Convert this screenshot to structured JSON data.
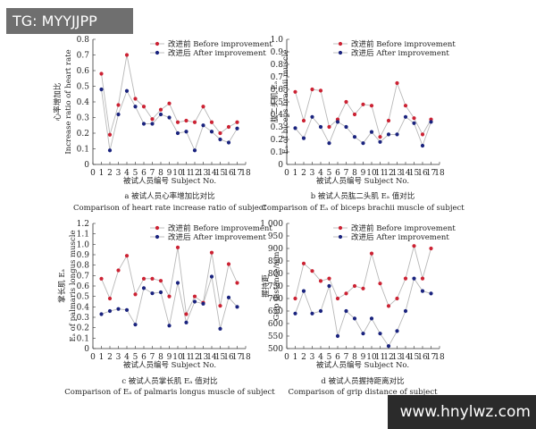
{
  "banner": {
    "text": "TG: MYYJJPP"
  },
  "watermark": {
    "text": "www.hnylwz.com"
  },
  "colors": {
    "before": "#cc2233",
    "after": "#1a237e",
    "line": "#b8b8b8",
    "axis": "#333333"
  },
  "chart_data": [
    {
      "id": "a",
      "type": "line",
      "legend": [
        "改进前 Before improvement",
        "改进后 After improvement"
      ],
      "ylabel_cn": "心率增加比",
      "ylabel_en": "Increase ratio of heart rate",
      "xlabel": "被试人员编号 Subject No.",
      "caption_cn": "a 被试人员心率增加比对比",
      "caption_en": "Comparison of heart rate increase ratio of subject",
      "xlim": [
        0,
        18
      ],
      "ylim": [
        0,
        0.8
      ],
      "xticks": [
        "0",
        "1",
        "2",
        "3",
        "4",
        "5",
        "6",
        "7",
        "8",
        "9",
        "10",
        "11",
        "12",
        "13",
        "14",
        "15",
        "16",
        "17",
        "18"
      ],
      "yticks": [
        "0",
        "0.1",
        "0.2",
        "0.3",
        "0.4",
        "0.5",
        "0.6",
        "0.7",
        "0.8"
      ],
      "x": [
        1,
        2,
        3,
        4,
        5,
        6,
        7,
        8,
        9,
        10,
        11,
        12,
        13,
        14,
        15,
        16,
        17
      ],
      "series": [
        {
          "name": "改进前 Before improvement",
          "values": [
            0.58,
            0.19,
            0.38,
            0.7,
            0.42,
            0.37,
            0.29,
            0.35,
            0.39,
            0.27,
            0.28,
            0.27,
            0.37,
            0.27,
            0.2,
            0.24,
            0.27
          ]
        },
        {
          "name": "改进后 After improvement",
          "values": [
            0.48,
            0.09,
            0.32,
            0.47,
            0.37,
            0.26,
            0.26,
            0.32,
            0.3,
            0.2,
            0.21,
            0.09,
            0.25,
            0.21,
            0.16,
            0.14,
            0.23
          ]
        }
      ]
    },
    {
      "id": "b",
      "type": "line",
      "legend": [
        "改进前 Before improvement",
        "改进后 After improvement"
      ],
      "ylabel_cn": "肱二头肌 Eₐ",
      "ylabel_en": "Eₐ of biceps brachii muscle",
      "xlabel": "被试人员编号 Subject No.",
      "caption_cn": "b 被试人员肱二头肌 Eₐ 值对比",
      "caption_en": "Comparison of Eₐ of biceps brachii muscle of subject",
      "xlim": [
        0,
        18
      ],
      "ylim": [
        0,
        1.0
      ],
      "xticks": [
        "0",
        "1",
        "2",
        "3",
        "4",
        "5",
        "6",
        "7",
        "8",
        "9",
        "10",
        "11",
        "12",
        "13",
        "14",
        "15",
        "16",
        "17",
        "18"
      ],
      "yticks": [
        "0",
        "0.1",
        "0.2",
        "0.3",
        "0.4",
        "0.5",
        "0.6",
        "0.7",
        "0.8",
        "0.9",
        "1.0"
      ],
      "x": [
        1,
        2,
        3,
        4,
        5,
        6,
        7,
        8,
        9,
        10,
        11,
        12,
        13,
        14,
        15,
        16,
        17
      ],
      "series": [
        {
          "name": "改进前 Before improvement",
          "values": [
            0.58,
            0.35,
            0.6,
            0.59,
            0.3,
            0.36,
            0.5,
            0.4,
            0.48,
            0.47,
            0.22,
            0.35,
            0.65,
            0.47,
            0.37,
            0.24,
            0.36
          ]
        },
        {
          "name": "改进后 After improvement",
          "values": [
            0.29,
            0.21,
            0.38,
            0.3,
            0.17,
            0.34,
            0.3,
            0.22,
            0.17,
            0.26,
            0.18,
            0.24,
            0.24,
            0.38,
            0.33,
            0.15,
            0.34
          ]
        }
      ]
    },
    {
      "id": "c",
      "type": "line",
      "legend": [
        "改进前 Before improvement",
        "改进后 After improvement"
      ],
      "ylabel_cn": "掌长肌 Eₐ",
      "ylabel_en": "Eₐ of palmaris longus muscle",
      "xlabel": "被试人员编号 Subject No.",
      "caption_cn": "c 被试人员掌长肌 Eₐ 值对比",
      "caption_en": "Comparison of Eₐ of palmaris longus muscle of subject",
      "xlim": [
        0,
        18
      ],
      "ylim": [
        0,
        1.2
      ],
      "xticks": [
        "0",
        "1",
        "2",
        "3",
        "4",
        "5",
        "6",
        "7",
        "8",
        "9",
        "10",
        "11",
        "12",
        "13",
        "14",
        "15",
        "16",
        "17",
        "18"
      ],
      "yticks": [
        "0",
        "0.1",
        "0.2",
        "0.3",
        "0.4",
        "0.5",
        "0.6",
        "0.7",
        "0.8",
        "0.9",
        "1.0",
        "1.1",
        "1.2"
      ],
      "x": [
        1,
        2,
        3,
        4,
        5,
        6,
        7,
        8,
        9,
        10,
        11,
        12,
        13,
        14,
        15,
        16,
        17
      ],
      "series": [
        {
          "name": "改进前 Before improvement",
          "values": [
            0.67,
            0.48,
            0.75,
            0.89,
            0.52,
            0.67,
            0.67,
            0.65,
            0.5,
            0.97,
            0.33,
            0.5,
            0.44,
            0.92,
            0.41,
            0.81,
            0.63
          ]
        },
        {
          "name": "改进后 After improvement",
          "values": [
            0.33,
            0.36,
            0.38,
            0.37,
            0.23,
            0.58,
            0.53,
            0.54,
            0.22,
            0.63,
            0.25,
            0.45,
            0.43,
            0.69,
            0.19,
            0.49,
            0.4
          ]
        }
      ]
    },
    {
      "id": "d",
      "type": "line",
      "legend": [
        "改进前 Before improvement",
        "改进后 After improvement"
      ],
      "ylabel_cn": "握持距",
      "ylabel_en": "Grip distance/mm",
      "xlabel": "被试人员编号 Subject No.",
      "caption_cn": "d 被试人员握持距离对比",
      "caption_en": "Comparison of grip distance of subject",
      "xlim": [
        0,
        18
      ],
      "ylim": [
        500,
        1000
      ],
      "xticks": [
        "0",
        "1",
        "2",
        "3",
        "4",
        "5",
        "6",
        "7",
        "8",
        "9",
        "10",
        "11",
        "12",
        "13",
        "14",
        "15",
        "16",
        "17",
        "18"
      ],
      "yticks": [
        "500",
        "550",
        "600",
        "650",
        "700",
        "750",
        "800",
        "850",
        "900",
        "950",
        "1 000"
      ],
      "x": [
        1,
        2,
        3,
        4,
        5,
        6,
        7,
        8,
        9,
        10,
        11,
        12,
        13,
        14,
        15,
        16,
        17
      ],
      "series": [
        {
          "name": "改进前 Before improvement",
          "values": [
            700,
            840,
            810,
            770,
            780,
            700,
            720,
            750,
            740,
            880,
            760,
            670,
            700,
            780,
            910,
            780,
            900
          ]
        },
        {
          "name": "改进后 After improvement",
          "values": [
            640,
            730,
            640,
            650,
            750,
            550,
            650,
            620,
            560,
            620,
            560,
            510,
            570,
            650,
            780,
            730,
            720
          ]
        }
      ]
    }
  ]
}
